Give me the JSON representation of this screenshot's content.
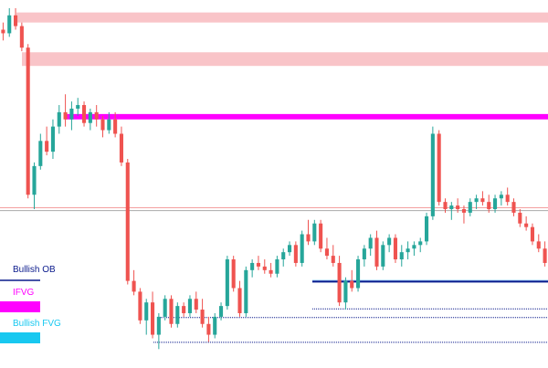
{
  "chart_data": {
    "type": "candlestick",
    "x": [],
    "y_range": [
      0,
      1
    ],
    "colors": {
      "up": "#26a69a",
      "down": "#ef5350",
      "hline": "#f4a0a0"
    },
    "zones": [
      {
        "kind": "supply",
        "color": "#f9c4c8",
        "top": 0.978,
        "bottom": 0.95,
        "from": 0.03
      },
      {
        "kind": "supply",
        "color": "#f9c4c8",
        "top": 0.867,
        "bottom": 0.829,
        "from": 0.04
      },
      {
        "kind": "IFVG",
        "color": "#ff00ff",
        "top": 0.695,
        "bottom": 0.68,
        "from": 0.12
      }
    ],
    "levels": [
      {
        "kind": "Bullish OB",
        "color": "#0a1a8c",
        "value": 0.228,
        "style": "solid",
        "from": 0.57,
        "width": 2,
        "fill": "#a8d8ff"
      },
      {
        "kind": "Bullish OB",
        "color": "#0a1a8c",
        "value": 0.152,
        "style": "dotted",
        "from": 0.57
      },
      {
        "kind": "Bullish OB",
        "color": "#0a1a8c",
        "value": 0.128,
        "style": "dotted",
        "from": 0.29
      },
      {
        "kind": "Bullish OB",
        "color": "#0a1a8c",
        "value": 0.059,
        "style": "dotted",
        "from": 0.28
      },
      {
        "kind": "reference",
        "color": "#f4a0a0",
        "value": 0.434,
        "style": "solid",
        "from": 0
      },
      {
        "kind": "reference",
        "color": "#aaaaaa",
        "value": 0.426,
        "style": "solid",
        "from": 0
      }
    ],
    "candles": [
      [
        0.93,
        0.95,
        0.9,
        0.92
      ],
      [
        0.92,
        0.99,
        0.91,
        0.97
      ],
      [
        0.97,
        0.99,
        0.93,
        0.94
      ],
      [
        0.94,
        0.95,
        0.87,
        0.88
      ],
      [
        0.88,
        0.89,
        0.46,
        0.47
      ],
      [
        0.47,
        0.56,
        0.43,
        0.55
      ],
      [
        0.55,
        0.64,
        0.54,
        0.62
      ],
      [
        0.62,
        0.66,
        0.58,
        0.59
      ],
      [
        0.59,
        0.68,
        0.57,
        0.66
      ],
      [
        0.66,
        0.72,
        0.64,
        0.7
      ],
      [
        0.7,
        0.75,
        0.66,
        0.68
      ],
      [
        0.68,
        0.73,
        0.65,
        0.71
      ],
      [
        0.71,
        0.74,
        0.69,
        0.72
      ],
      [
        0.72,
        0.73,
        0.66,
        0.67
      ],
      [
        0.67,
        0.71,
        0.65,
        0.7
      ],
      [
        0.7,
        0.72,
        0.66,
        0.68
      ],
      [
        0.68,
        0.69,
        0.63,
        0.65
      ],
      [
        0.65,
        0.7,
        0.64,
        0.68
      ],
      [
        0.68,
        0.7,
        0.63,
        0.64
      ],
      [
        0.64,
        0.66,
        0.55,
        0.56
      ],
      [
        0.56,
        0.57,
        0.22,
        0.23
      ],
      [
        0.23,
        0.26,
        0.19,
        0.2
      ],
      [
        0.2,
        0.21,
        0.11,
        0.12
      ],
      [
        0.12,
        0.18,
        0.08,
        0.17
      ],
      [
        0.17,
        0.2,
        0.07,
        0.08
      ],
      [
        0.08,
        0.14,
        0.04,
        0.13
      ],
      [
        0.13,
        0.19,
        0.12,
        0.18
      ],
      [
        0.18,
        0.19,
        0.1,
        0.11
      ],
      [
        0.11,
        0.17,
        0.1,
        0.16
      ],
      [
        0.16,
        0.17,
        0.13,
        0.14
      ],
      [
        0.14,
        0.19,
        0.13,
        0.18
      ],
      [
        0.18,
        0.2,
        0.14,
        0.15
      ],
      [
        0.15,
        0.18,
        0.1,
        0.11
      ],
      [
        0.11,
        0.13,
        0.06,
        0.08
      ],
      [
        0.08,
        0.14,
        0.07,
        0.13
      ],
      [
        0.13,
        0.17,
        0.12,
        0.16
      ],
      [
        0.16,
        0.3,
        0.15,
        0.29
      ],
      [
        0.29,
        0.3,
        0.2,
        0.21
      ],
      [
        0.21,
        0.23,
        0.13,
        0.14
      ],
      [
        0.14,
        0.27,
        0.13,
        0.26
      ],
      [
        0.26,
        0.29,
        0.24,
        0.28
      ],
      [
        0.28,
        0.3,
        0.26,
        0.27
      ],
      [
        0.27,
        0.29,
        0.25,
        0.26
      ],
      [
        0.26,
        0.28,
        0.24,
        0.25
      ],
      [
        0.25,
        0.3,
        0.24,
        0.29
      ],
      [
        0.29,
        0.32,
        0.27,
        0.31
      ],
      [
        0.31,
        0.34,
        0.3,
        0.33
      ],
      [
        0.33,
        0.34,
        0.27,
        0.28
      ],
      [
        0.28,
        0.37,
        0.27,
        0.36
      ],
      [
        0.36,
        0.4,
        0.33,
        0.34
      ],
      [
        0.34,
        0.4,
        0.33,
        0.39
      ],
      [
        0.39,
        0.4,
        0.31,
        0.32
      ],
      [
        0.32,
        0.35,
        0.29,
        0.3
      ],
      [
        0.3,
        0.33,
        0.27,
        0.28
      ],
      [
        0.28,
        0.3,
        0.16,
        0.17
      ],
      [
        0.17,
        0.24,
        0.15,
        0.23
      ],
      [
        0.23,
        0.26,
        0.2,
        0.21
      ],
      [
        0.21,
        0.3,
        0.2,
        0.29
      ],
      [
        0.29,
        0.33,
        0.27,
        0.32
      ],
      [
        0.32,
        0.36,
        0.3,
        0.35
      ],
      [
        0.35,
        0.37,
        0.26,
        0.27
      ],
      [
        0.27,
        0.34,
        0.26,
        0.33
      ],
      [
        0.33,
        0.36,
        0.31,
        0.35
      ],
      [
        0.35,
        0.36,
        0.28,
        0.29
      ],
      [
        0.29,
        0.33,
        0.27,
        0.31
      ],
      [
        0.31,
        0.34,
        0.29,
        0.32
      ],
      [
        0.32,
        0.34,
        0.3,
        0.33
      ],
      [
        0.33,
        0.35,
        0.31,
        0.34
      ],
      [
        0.34,
        0.42,
        0.33,
        0.41
      ],
      [
        0.41,
        0.66,
        0.4,
        0.64
      ],
      [
        0.64,
        0.65,
        0.44,
        0.45
      ],
      [
        0.45,
        0.46,
        0.42,
        0.43
      ],
      [
        0.43,
        0.45,
        0.4,
        0.44
      ],
      [
        0.44,
        0.46,
        0.42,
        0.43
      ],
      [
        0.43,
        0.44,
        0.39,
        0.42
      ],
      [
        0.42,
        0.46,
        0.41,
        0.45
      ],
      [
        0.45,
        0.47,
        0.43,
        0.46
      ],
      [
        0.46,
        0.48,
        0.44,
        0.45
      ],
      [
        0.45,
        0.47,
        0.42,
        0.43
      ],
      [
        0.43,
        0.47,
        0.42,
        0.46
      ],
      [
        0.46,
        0.48,
        0.44,
        0.47
      ],
      [
        0.47,
        0.49,
        0.44,
        0.45
      ],
      [
        0.45,
        0.46,
        0.41,
        0.42
      ],
      [
        0.42,
        0.43,
        0.38,
        0.39
      ],
      [
        0.39,
        0.41,
        0.37,
        0.38
      ],
      [
        0.38,
        0.39,
        0.33,
        0.34
      ],
      [
        0.34,
        0.36,
        0.31,
        0.32
      ],
      [
        0.32,
        0.34,
        0.27,
        0.28
      ]
    ],
    "legend": [
      {
        "label": "Bullish OB",
        "color": "#0a1a8c",
        "swatch": "line"
      },
      {
        "label": "IFVG",
        "color": "#ff00ff",
        "swatch": "block"
      },
      {
        "label": "Bullish FVG",
        "color": "#18c8f0",
        "swatch": "block"
      }
    ],
    "legend_text_colors": [
      "#0a1a8c",
      "#ff00ff",
      "#18c8f0"
    ],
    "grid": false
  }
}
